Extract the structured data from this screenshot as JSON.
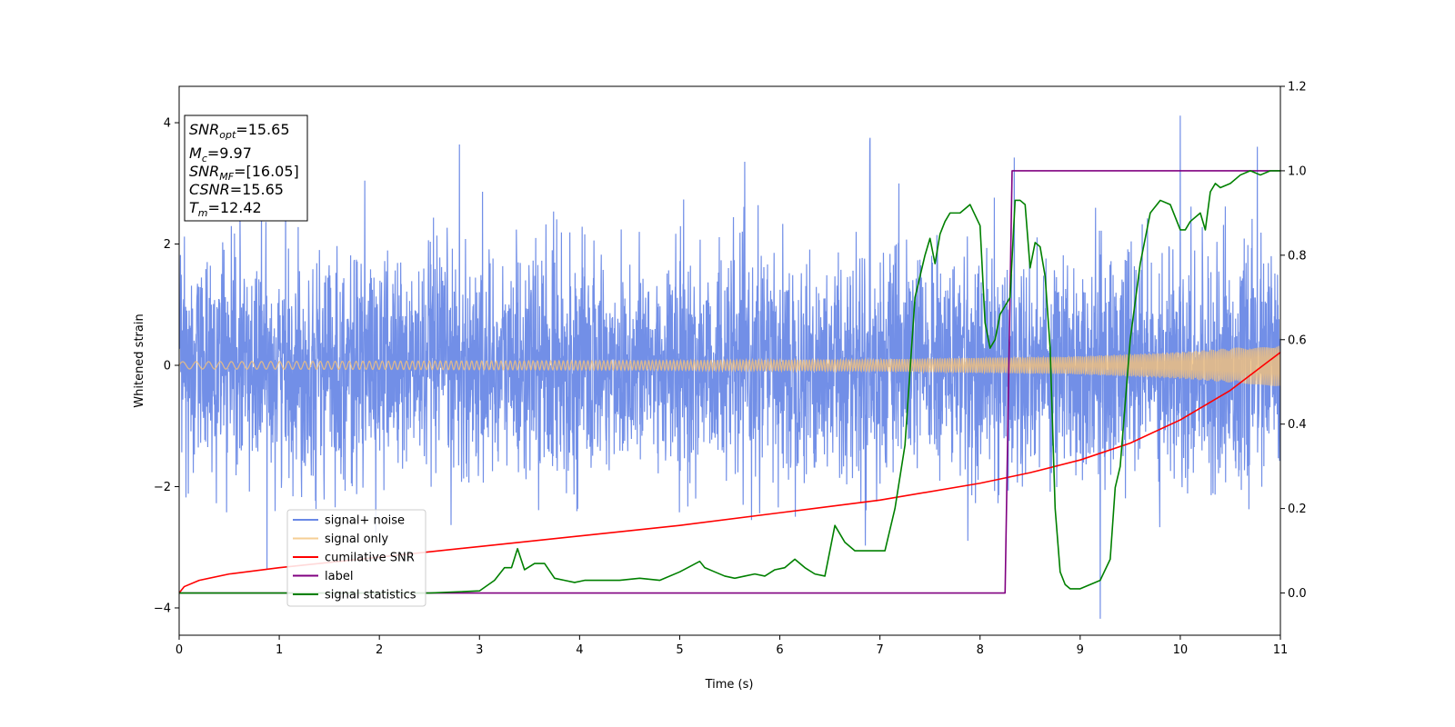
{
  "chart_data": {
    "type": "line",
    "xlabel": "Time (s)",
    "ylabel": "Whitened strain",
    "xlim": [
      0,
      11
    ],
    "ylim": [
      -4.45,
      4.6
    ],
    "y2lim": [
      -0.1,
      1.2
    ],
    "xticks": [
      0,
      1,
      2,
      3,
      4,
      5,
      6,
      7,
      8,
      9,
      10,
      11
    ],
    "yticks": [
      -4,
      -2,
      0,
      2,
      4
    ],
    "y2ticks": [
      0.0,
      0.2,
      0.4,
      0.6,
      0.8,
      1.0,
      1.2
    ],
    "legend_position": "lower-left",
    "info_box": {
      "snr_opt": {
        "base": "SNR",
        "sub": "opt",
        "value": "=15.65"
      },
      "mc": {
        "base": "M",
        "sub": "c",
        "value": "=9.97"
      },
      "snr_mf": {
        "base": "SNR",
        "sub": "MF",
        "value": "=[16.05]"
      },
      "csnr": {
        "base": "CSNR",
        "value": "=15.65"
      },
      "tm": {
        "base": "T",
        "sub": "m",
        "value": "=12.42"
      }
    },
    "series": [
      {
        "name": "signal+ noise",
        "color": "#6a89e6",
        "axis": "left",
        "description_values": {
          "noise_std": 0.9,
          "peaks": [
            [
              2.8,
              3.7
            ],
            [
              6.9,
              3.7
            ],
            [
              9.2,
              -4.05
            ],
            [
              10.0,
              4.15
            ],
            [
              10.77,
              3.7
            ]
          ]
        }
      },
      {
        "name": "signal only",
        "color": "#f5c27a",
        "axis": "left",
        "amplitude": {
          "x": [
            0,
            5,
            7,
            9,
            10,
            11
          ],
          "y": [
            0.06,
            0.08,
            0.1,
            0.15,
            0.22,
            0.35
          ]
        }
      },
      {
        "name": "cumilative SNR",
        "color": "#ff0000",
        "axis": "right",
        "x": [
          0,
          0.05,
          0.2,
          0.5,
          1,
          2,
          3,
          4,
          5,
          6,
          7,
          8,
          8.5,
          9,
          9.5,
          10,
          10.5,
          11
        ],
        "y": [
          0.0,
          0.015,
          0.03,
          0.045,
          0.06,
          0.085,
          0.11,
          0.135,
          0.16,
          0.19,
          0.22,
          0.26,
          0.285,
          0.315,
          0.355,
          0.41,
          0.48,
          0.57
        ]
      },
      {
        "name": "label",
        "color": "#800080",
        "axis": "right",
        "x": [
          0,
          8.25,
          8.32,
          11
        ],
        "y": [
          0.0,
          0.0,
          1.0,
          1.0
        ]
      },
      {
        "name": "signal statistics",
        "color": "#008000",
        "axis": "right",
        "x": [
          0,
          2.5,
          3.0,
          3.15,
          3.25,
          3.32,
          3.38,
          3.45,
          3.55,
          3.65,
          3.75,
          3.85,
          3.95,
          4.05,
          4.2,
          4.4,
          4.6,
          4.8,
          5.0,
          5.2,
          5.25,
          5.35,
          5.45,
          5.55,
          5.65,
          5.75,
          5.85,
          5.95,
          6.05,
          6.15,
          6.25,
          6.35,
          6.45,
          6.55,
          6.65,
          6.75,
          6.85,
          6.95,
          7.05,
          7.15,
          7.25,
          7.35,
          7.45,
          7.5,
          7.55,
          7.6,
          7.65,
          7.7,
          7.8,
          7.9,
          8.0,
          8.05,
          8.1,
          8.15,
          8.2,
          8.25,
          8.3,
          8.35,
          8.4,
          8.45,
          8.5,
          8.55,
          8.6,
          8.65,
          8.7,
          8.75,
          8.8,
          8.85,
          8.9,
          9.0,
          9.1,
          9.2,
          9.3,
          9.35,
          9.4,
          9.45,
          9.5,
          9.6,
          9.7,
          9.8,
          9.9,
          10.0,
          10.05,
          10.1,
          10.2,
          10.25,
          10.3,
          10.35,
          10.4,
          10.5,
          10.6,
          10.7,
          10.8,
          10.9,
          11.0
        ],
        "y": [
          0.0,
          0.0,
          0.005,
          0.03,
          0.06,
          0.06,
          0.105,
          0.055,
          0.07,
          0.07,
          0.035,
          0.03,
          0.025,
          0.03,
          0.03,
          0.03,
          0.035,
          0.03,
          0.05,
          0.075,
          0.06,
          0.05,
          0.04,
          0.035,
          0.04,
          0.045,
          0.04,
          0.055,
          0.06,
          0.08,
          0.06,
          0.045,
          0.04,
          0.16,
          0.12,
          0.1,
          0.1,
          0.1,
          0.1,
          0.2,
          0.35,
          0.7,
          0.8,
          0.84,
          0.78,
          0.85,
          0.88,
          0.9,
          0.9,
          0.92,
          0.87,
          0.64,
          0.58,
          0.6,
          0.66,
          0.68,
          0.7,
          0.93,
          0.93,
          0.92,
          0.77,
          0.83,
          0.82,
          0.75,
          0.58,
          0.2,
          0.05,
          0.02,
          0.01,
          0.01,
          0.02,
          0.03,
          0.08,
          0.25,
          0.3,
          0.45,
          0.6,
          0.78,
          0.9,
          0.93,
          0.92,
          0.86,
          0.86,
          0.88,
          0.9,
          0.86,
          0.95,
          0.97,
          0.96,
          0.97,
          0.99,
          1.0,
          0.99,
          1.0,
          1.0
        ]
      }
    ]
  }
}
